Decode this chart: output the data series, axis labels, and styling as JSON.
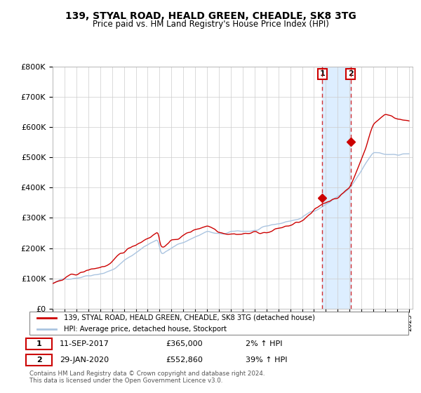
{
  "title": "139, STYAL ROAD, HEALD GREEN, CHEADLE, SK8 3TG",
  "subtitle": "Price paid vs. HM Land Registry's House Price Index (HPI)",
  "legend_line1": "139, STYAL ROAD, HEALD GREEN, CHEADLE, SK8 3TG (detached house)",
  "legend_line2": "HPI: Average price, detached house, Stockport",
  "annotation1_date": "11-SEP-2017",
  "annotation1_price": "£365,000",
  "annotation1_hpi": "2% ↑ HPI",
  "annotation2_date": "29-JAN-2020",
  "annotation2_price": "£552,860",
  "annotation2_hpi": "39% ↑ HPI",
  "footer": "Contains HM Land Registry data © Crown copyright and database right 2024.\nThis data is licensed under the Open Government Licence v3.0.",
  "hpi_color": "#aac4e0",
  "price_color": "#cc0000",
  "shade_color": "#ddeeff",
  "annotation_color": "#cc0000",
  "bg_color": "#ffffff",
  "grid_color": "#cccccc",
  "sale1_year": 2017.7,
  "sale1_value": 365000,
  "sale2_year": 2020.08,
  "sale2_value": 552860,
  "ylim": [
    0,
    800000
  ],
  "yticks": [
    0,
    100000,
    200000,
    300000,
    400000,
    500000,
    600000,
    700000,
    800000
  ],
  "ytick_labels": [
    "£0",
    "£100K",
    "£200K",
    "£300K",
    "£400K",
    "£500K",
    "£600K",
    "£700K",
    "£800K"
  ]
}
